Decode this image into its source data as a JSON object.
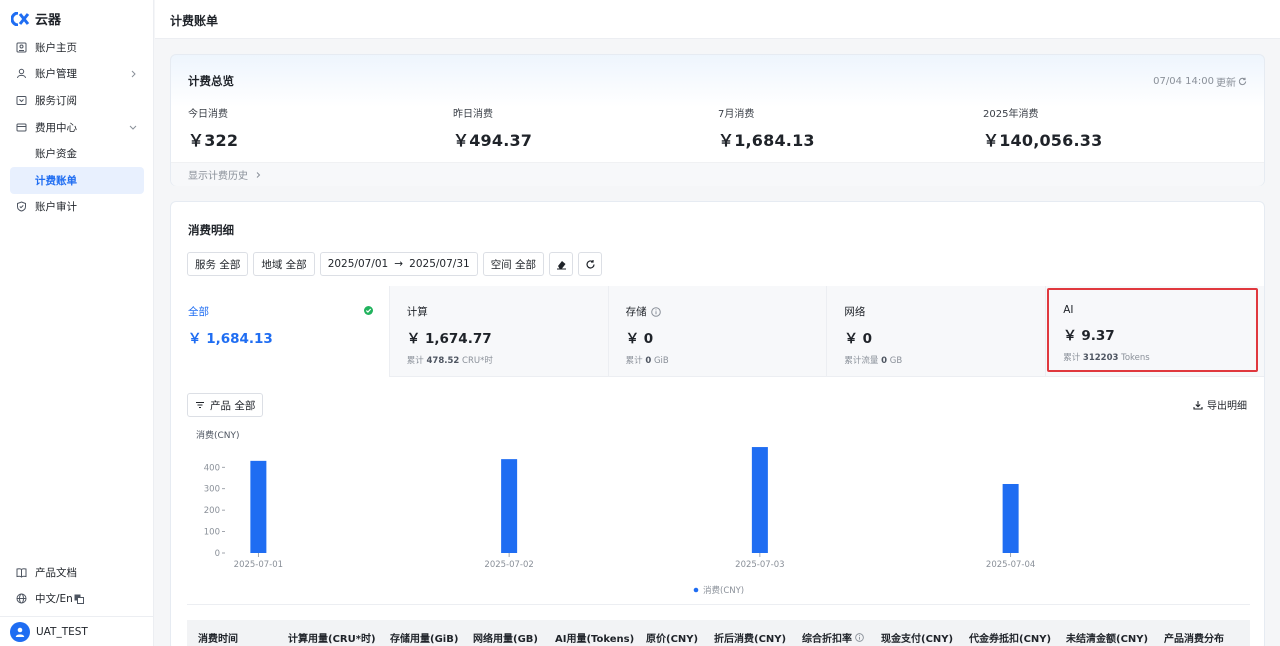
{
  "app": {
    "logo_text": "云器"
  },
  "sidebar": {
    "items": [
      {
        "label": "账户主页"
      },
      {
        "label": "账户管理"
      },
      {
        "label": "服务订阅"
      },
      {
        "label": "费用中心"
      },
      {
        "label": "账户资金"
      },
      {
        "label": "计费账单"
      },
      {
        "label": "账户审计"
      }
    ],
    "bottom": [
      {
        "label": "产品文档"
      },
      {
        "label": "中文/En"
      }
    ],
    "user": "UAT_TEST"
  },
  "header": {
    "title": "计费账单"
  },
  "overview": {
    "title": "计费总览",
    "update_time": "07/04 14:00",
    "update_label": "更新",
    "stats": [
      {
        "label": "今日消费",
        "value": "￥322"
      },
      {
        "label": "昨日消费",
        "value": "￥494.37"
      },
      {
        "label": "7月消费",
        "value": "￥1,684.13"
      },
      {
        "label": "2025年消费",
        "value": "￥140,056.33"
      }
    ],
    "history_link": "显示计费历史"
  },
  "detail": {
    "title": "消费明细",
    "filters": {
      "service": "服务 全部",
      "region": "地域 全部",
      "date_start": "2025/07/01",
      "date_arrow": "→",
      "date_end": "2025/07/31",
      "space": "空间 全部"
    },
    "categories": [
      {
        "name": "全部",
        "value": "￥ 1,684.13",
        "sub_prefix": "",
        "sub_value": "",
        "sub_unit": ""
      },
      {
        "name": "计算",
        "value": "￥ 1,674.77",
        "sub_prefix": "累计",
        "sub_value": "478.52",
        "sub_unit": "CRU*时"
      },
      {
        "name": "存储",
        "value": "￥ 0",
        "sub_prefix": "累计",
        "sub_value": "0",
        "sub_unit": "GiB"
      },
      {
        "name": "网络",
        "value": "￥ 0",
        "sub_prefix": "累计流量",
        "sub_value": "0",
        "sub_unit": "GB"
      },
      {
        "name": "AI",
        "value": "￥ 9.37",
        "sub_prefix": "累计",
        "sub_value": "312203",
        "sub_unit": "Tokens"
      }
    ],
    "product_filter": "产品 全部",
    "export_label": "导出明细",
    "table_headers": [
      "消费时间",
      "计算用量(CRU*时)",
      "存储用量(GiB)",
      "网络用量(GB)",
      "AI用量(Tokens)",
      "原价(CNY)",
      "折后消费(CNY)",
      "综合折扣率",
      "现金支付(CNY)",
      "代金券抵扣(CNY)",
      "未结清金额(CNY)",
      "产品消费分布"
    ]
  },
  "colors": {
    "accent": "#1f6df2",
    "bar": "#1f6df2",
    "highlight": "#e0383e",
    "success": "#22b35e"
  },
  "chart_data": {
    "type": "bar",
    "categories": [
      "2025-07-01",
      "2025-07-02",
      "2025-07-03",
      "2025-07-04"
    ],
    "series": [
      {
        "name": "消费(CNY)",
        "values": [
          430,
          438,
          494.37,
          322
        ]
      }
    ],
    "ylabel": "消费(CNY)",
    "ylim": [
      0,
      500
    ],
    "yticks": [
      0,
      100,
      200,
      300,
      400
    ],
    "legend": "bottom-center",
    "grid": false
  }
}
